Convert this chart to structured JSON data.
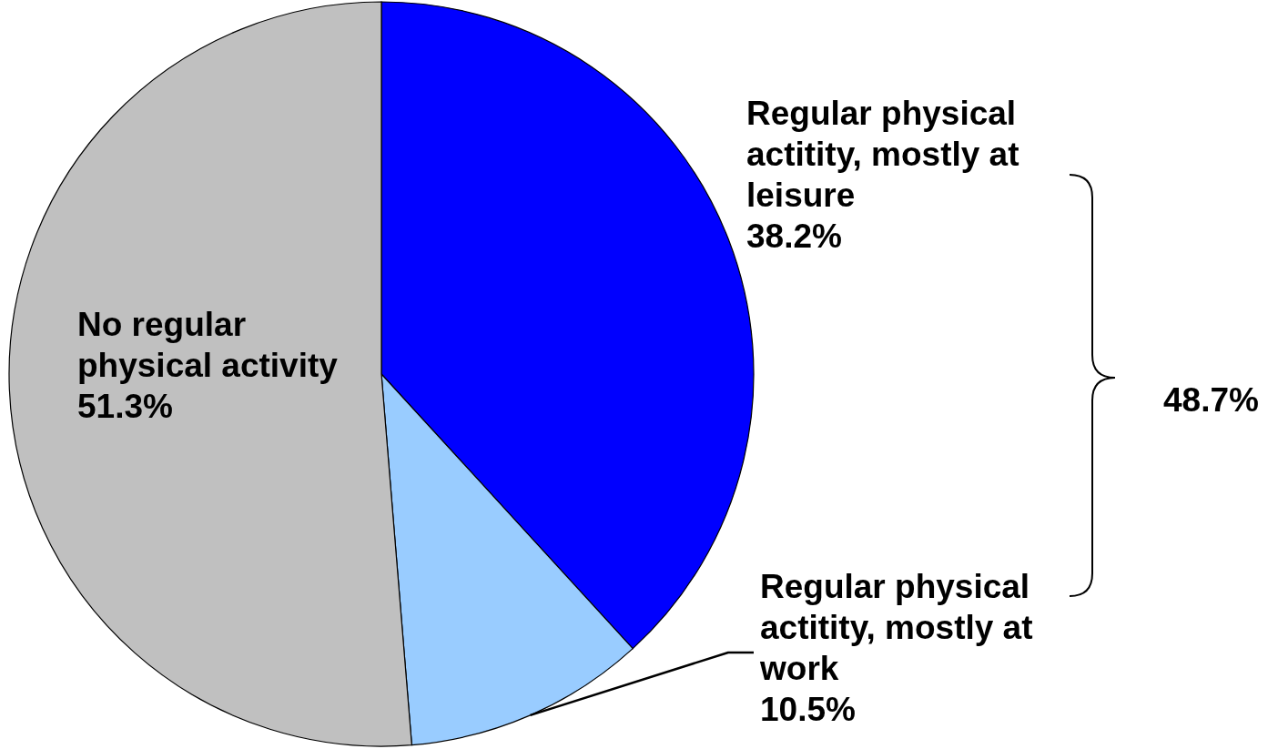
{
  "chart_data": {
    "type": "pie",
    "categories": [
      "Regular physical actitity, mostly at leisure",
      "Regular physical actitity, mostly at work",
      "No regular physical activity"
    ],
    "values": [
      38.2,
      10.5,
      51.3
    ],
    "colors": [
      "#0000ff",
      "#99ccff",
      "#c0c0c0"
    ],
    "value_labels": [
      "38.2%",
      "10.5%",
      "51.3%"
    ],
    "annotations": [
      "48.7%"
    ]
  }
}
